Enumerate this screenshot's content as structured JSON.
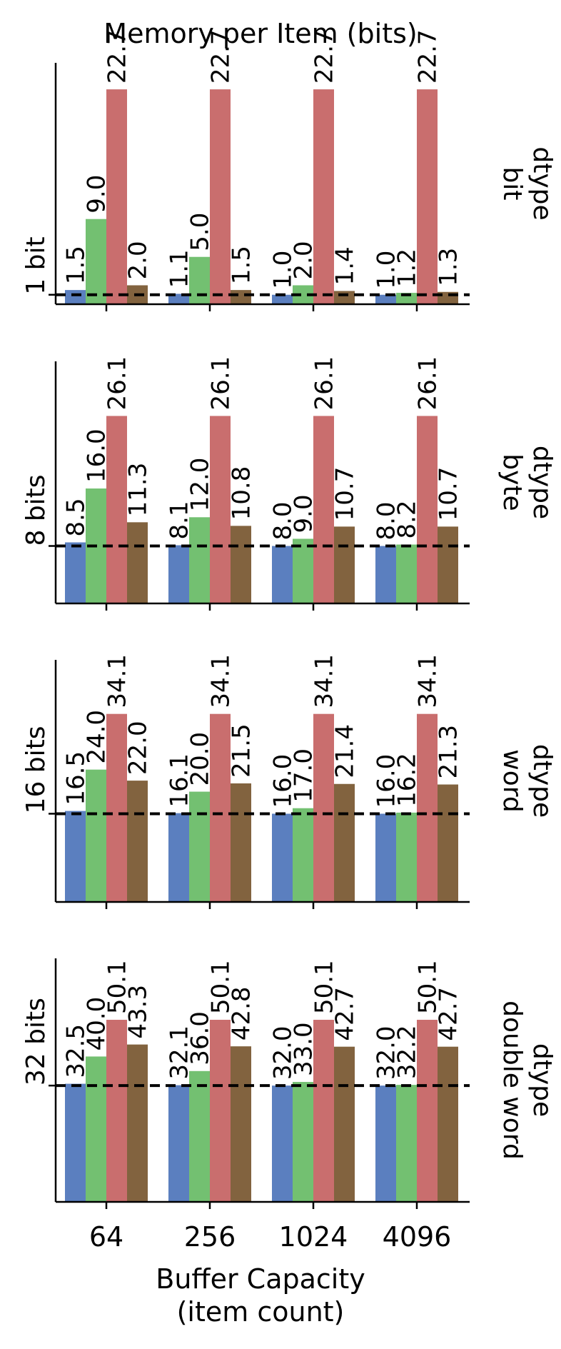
{
  "chart_data": {
    "type": "bar",
    "title": "Memory per Item (bits)",
    "xlabel_lines": [
      "Buffer Capacity",
      "(item count)"
    ],
    "categories": [
      "64",
      "256",
      "1024",
      "4096"
    ],
    "series_colors": [
      "#5b7fbf",
      "#73c071",
      "#c96e6e",
      "#82633f"
    ],
    "panels": [
      {
        "ylabel": "1 bit",
        "right_label_lines": [
          "dtype",
          "bit"
        ],
        "reference_line": 1,
        "ylim": [
          0,
          25.5
        ],
        "series": [
          {
            "values": [
              1.5,
              1.1,
              1.0,
              1.0
            ],
            "labels": [
              "1.5",
              "1.1",
              "1.0",
              "1.0"
            ]
          },
          {
            "values": [
              9.0,
              5.0,
              2.0,
              1.2
            ],
            "labels": [
              "9.0",
              "5.0",
              "2.0",
              "1.2"
            ]
          },
          {
            "values": [
              22.7,
              22.7,
              22.7,
              22.7
            ],
            "labels": [
              "22.7",
              "22.7",
              "22.7",
              "22.7"
            ]
          },
          {
            "values": [
              2.0,
              1.5,
              1.4,
              1.3
            ],
            "labels": [
              "2.0",
              "1.5",
              "1.4",
              "1.3"
            ]
          }
        ]
      },
      {
        "ylabel": "8 bits",
        "right_label_lines": [
          "dtype",
          "byte"
        ],
        "reference_line": 8,
        "ylim": [
          0,
          33.7
        ],
        "series": [
          {
            "values": [
              8.5,
              8.1,
              8.0,
              8.0
            ],
            "labels": [
              "8.5",
              "8.1",
              "8.0",
              "8.0"
            ]
          },
          {
            "values": [
              16.0,
              12.0,
              9.0,
              8.2
            ],
            "labels": [
              "16.0",
              "12.0",
              "9.0",
              "8.2"
            ]
          },
          {
            "values": [
              26.1,
              26.1,
              26.1,
              26.1
            ],
            "labels": [
              "26.1",
              "26.1",
              "26.1",
              "26.1"
            ]
          },
          {
            "values": [
              11.3,
              10.8,
              10.7,
              10.7
            ],
            "labels": [
              "11.3",
              "10.8",
              "10.7",
              "10.7"
            ]
          }
        ]
      },
      {
        "ylabel": "16 bits",
        "right_label_lines": [
          "dtype",
          "word"
        ],
        "reference_line": 16,
        "ylim": [
          0,
          43.9
        ],
        "series": [
          {
            "values": [
              16.5,
              16.1,
              16.0,
              16.0
            ],
            "labels": [
              "16.5",
              "16.1",
              "16.0",
              "16.0"
            ]
          },
          {
            "values": [
              24.0,
              20.0,
              17.0,
              16.2
            ],
            "labels": [
              "24.0",
              "20.0",
              "17.0",
              "16.2"
            ]
          },
          {
            "values": [
              34.1,
              34.1,
              34.1,
              34.1
            ],
            "labels": [
              "34.1",
              "34.1",
              "34.1",
              "34.1"
            ]
          },
          {
            "values": [
              22.0,
              21.5,
              21.4,
              21.3
            ],
            "labels": [
              "22.0",
              "21.5",
              "21.4",
              "21.3"
            ]
          }
        ]
      },
      {
        "ylabel": "32 bits",
        "right_label_lines": [
          "dtype",
          "double word"
        ],
        "reference_line": 32,
        "ylim": [
          0,
          67
        ],
        "series": [
          {
            "values": [
              32.5,
              32.1,
              32.0,
              32.0
            ],
            "labels": [
              "32.5",
              "32.1",
              "32.0",
              "32.0"
            ]
          },
          {
            "values": [
              40.0,
              36.0,
              33.0,
              32.2
            ],
            "labels": [
              "40.0",
              "36.0",
              "33.0",
              "32.2"
            ]
          },
          {
            "values": [
              50.1,
              50.1,
              50.1,
              50.1
            ],
            "labels": [
              "50.1",
              "50.1",
              "50.1",
              "50.1"
            ]
          },
          {
            "values": [
              43.3,
              42.8,
              42.7,
              42.7
            ],
            "labels": [
              "43.3",
              "42.8",
              "42.7",
              "42.7"
            ]
          }
        ]
      }
    ]
  }
}
